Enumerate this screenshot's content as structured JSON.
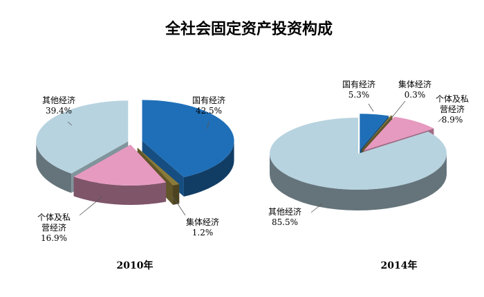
{
  "chart_data": [
    {
      "type": "pie",
      "title": "全社会固定资产投资构成",
      "caption": "2010年",
      "slices": [
        {
          "label_lines": [
            "国有经济"
          ],
          "value": 42.5,
          "value_text": "42.5%",
          "color": "#1f6fb8"
        },
        {
          "label_lines": [
            "集体经济"
          ],
          "value": 1.2,
          "value_text": "1.2%",
          "color": "#8a7a3a"
        },
        {
          "label_lines": [
            "个体及私",
            "营经济"
          ],
          "value": 16.9,
          "value_text": "16.9%",
          "color": "#e79ac0"
        },
        {
          "label_lines": [
            "其他经济"
          ],
          "value": 39.4,
          "value_text": "39.4%",
          "color": "#b7d3df"
        }
      ]
    },
    {
      "type": "pie",
      "title": "",
      "caption": "2014年",
      "slices": [
        {
          "label_lines": [
            "国有经济"
          ],
          "value": 5.3,
          "value_text": "5.3%",
          "color": "#1f6fb8"
        },
        {
          "label_lines": [
            "集体经济"
          ],
          "value": 0.3,
          "value_text": "0.3%",
          "color": "#8a7a3a"
        },
        {
          "label_lines": [
            "个体及私",
            "营经济"
          ],
          "value": 8.9,
          "value_text": "8.9%",
          "color": "#e79ac0"
        },
        {
          "label_lines": [
            "其他经济"
          ],
          "value": 85.5,
          "value_text": "85.5%",
          "color": "#b7d3df"
        }
      ]
    }
  ]
}
